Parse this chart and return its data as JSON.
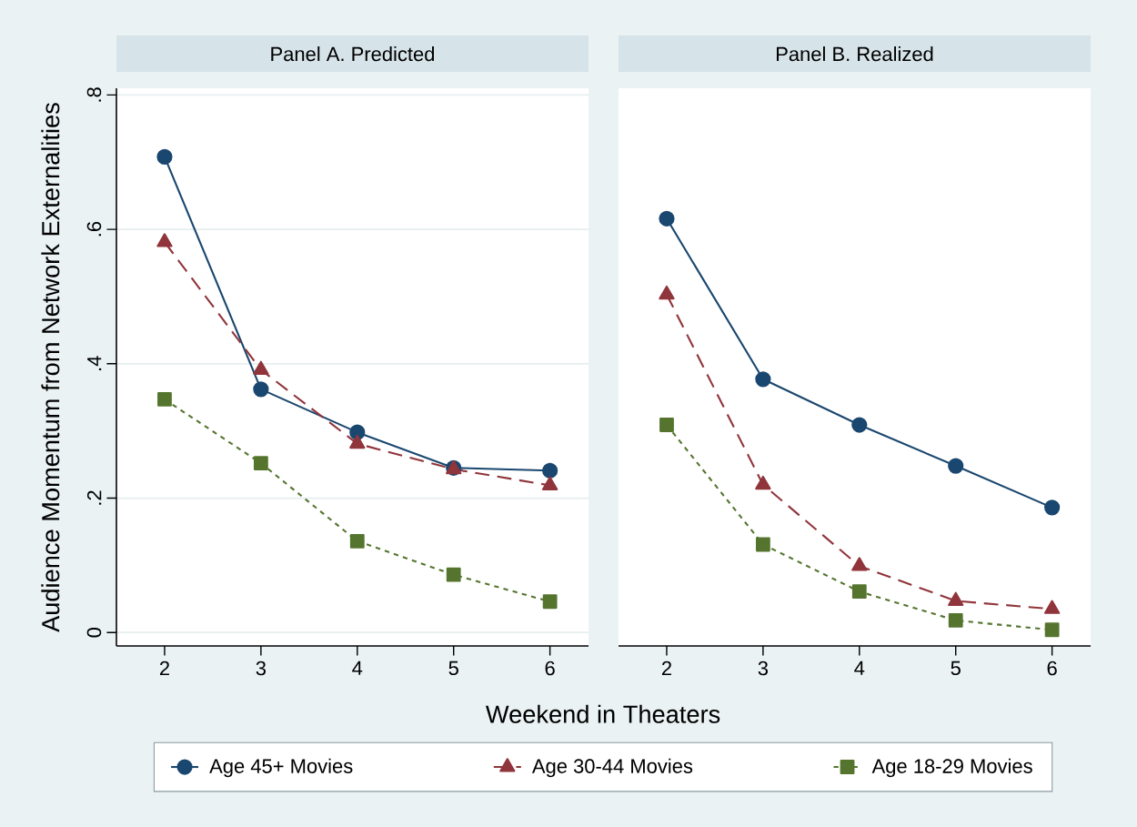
{
  "chart_data": [
    {
      "type": "line",
      "title": "Panel A. Predicted",
      "xlabel": "Weekend in Theaters",
      "ylabel": "Audience Momentum from Network Externalities",
      "x": [
        2,
        3,
        4,
        5,
        6
      ],
      "series": [
        {
          "name": "Age 45+ Movies",
          "color": "#1a476f",
          "marker": "circle",
          "line_style": "solid",
          "values": [
            0.708,
            0.362,
            0.298,
            0.245,
            0.241
          ]
        },
        {
          "name": "Age 30-44 Movies",
          "color": "#90353b",
          "marker": "triangle",
          "line_style": "dashed",
          "values": [
            0.581,
            0.391,
            0.281,
            0.243,
            0.219
          ]
        },
        {
          "name": "Age 18-29 Movies",
          "color": "#55752f",
          "marker": "square",
          "line_style": "dotted",
          "values": [
            0.347,
            0.252,
            0.136,
            0.086,
            0.046
          ]
        }
      ],
      "xlim": [
        1.5,
        6.4
      ],
      "ylim": [
        -0.02,
        0.81
      ],
      "xticks": [
        2,
        3,
        4,
        5,
        6
      ],
      "yticks": [
        0,
        {
          "value": 0.2,
          "label": ".2"
        },
        {
          "value": 0.4,
          "label": ".4"
        },
        {
          "value": 0.6,
          "label": ".6"
        },
        {
          "value": 0.8,
          "label": ".8"
        }
      ],
      "grid": "y",
      "legend": "bottom"
    },
    {
      "type": "line",
      "title": "Panel B. Realized",
      "x": [
        2,
        3,
        4,
        5,
        6
      ],
      "series": [
        {
          "color": "#1a476f",
          "marker": "circle",
          "line_style": "solid",
          "values": [
            0.616,
            0.377,
            0.309,
            0.248,
            0.186
          ]
        },
        {
          "color": "#90353b",
          "marker": "triangle",
          "line_style": "dashed",
          "values": [
            0.503,
            0.22,
            0.099,
            0.047,
            0.035
          ]
        },
        {
          "color": "#55752f",
          "marker": "square",
          "line_style": "dotted",
          "values": [
            0.309,
            0.131,
            0.061,
            0.018,
            0.004
          ]
        }
      ],
      "xlim": [
        1.5,
        6.4
      ],
      "ylim": [
        -0.02,
        0.81
      ],
      "xticks": [
        2,
        3,
        4,
        5,
        6
      ],
      "yticks": [
        0,
        0.2,
        0.4,
        0.6,
        0.8
      ],
      "grid": "y",
      "tick_labels": "x"
    }
  ]
}
